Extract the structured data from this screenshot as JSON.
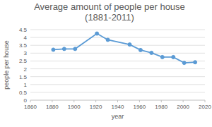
{
  "chart_data": {
    "type": "line",
    "title": "Average amount of people per house (1881-2011)",
    "x_label": "year",
    "y_label": "people per house",
    "x": [
      1881,
      1891,
      1901,
      1921,
      1931,
      1951,
      1961,
      1971,
      1981,
      1991,
      2001,
      2011
    ],
    "values": [
      3.22,
      3.27,
      3.27,
      4.25,
      3.85,
      3.55,
      3.2,
      3.02,
      2.75,
      2.75,
      2.38,
      2.42
    ],
    "color": "#5b9bd5",
    "marker": "circle",
    "xlim": [
      1860,
      2020
    ],
    "xticks": [
      1860,
      1880,
      1900,
      1920,
      1940,
      1960,
      1980,
      2000,
      2020
    ],
    "ylim": [
      0,
      4.5
    ],
    "yticks": [
      0,
      0.5,
      1,
      1.5,
      2,
      2.5,
      3,
      3.5,
      4,
      4.5
    ],
    "grid": true
  }
}
